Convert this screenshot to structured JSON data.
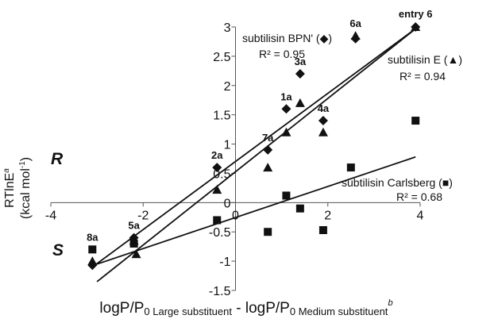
{
  "chart_data": {
    "type": "scatter",
    "xlim": [
      -4,
      4
    ],
    "ylim": [
      -1.5,
      3
    ],
    "x_ticks": [
      "-4",
      "-2",
      "0",
      "2",
      "4"
    ],
    "y_ticks": [
      "-1.5",
      "-1",
      "-0.5",
      "0",
      "0.5",
      "1",
      "1.5",
      "2",
      "2.5",
      "3"
    ],
    "xlabel": {
      "part1": "logP/P",
      "sub1": "0 Large substituent",
      "mid": " - logP/P",
      "sub2": "0 Medium substituent",
      "sup": "b"
    },
    "ylabel": {
      "line1_main": "RTlnE",
      "line1_sup": "a",
      "line2_main": "(kcal mol",
      "line2_sup": "-1",
      "line2_end": ")"
    },
    "region_labels": {
      "upper": "R",
      "lower": "S"
    },
    "series": [
      {
        "name": "subtilisin BPN'",
        "marker": "diamond",
        "color": "#111111",
        "annotation": "subtilisin BPN' (◆)",
        "r2": "R² = 0.95",
        "fit": {
          "x": [
            -3.1,
            3.95
          ],
          "y": [
            -1.1,
            3.0
          ]
        },
        "points": [
          {
            "x": -3.1,
            "y": -1.07
          },
          {
            "x": -2.2,
            "y": -0.6
          },
          {
            "x": -0.4,
            "y": 0.6
          },
          {
            "x": 0.7,
            "y": 0.9
          },
          {
            "x": 1.1,
            "y": 1.6
          },
          {
            "x": 1.4,
            "y": 2.2
          },
          {
            "x": 1.9,
            "y": 1.4
          },
          {
            "x": 2.6,
            "y": 2.8
          },
          {
            "x": 3.9,
            "y": 3.0
          }
        ]
      },
      {
        "name": "subtilisin E",
        "marker": "triangle",
        "color": "#111111",
        "annotation": "subtilisin E (▲)",
        "r2": "R² = 0.94",
        "fit": {
          "x": [
            -3.0,
            3.95
          ],
          "y": [
            -1.35,
            3.0
          ]
        },
        "points": [
          {
            "x": -3.1,
            "y": -1.0
          },
          {
            "x": -2.2,
            "y": -0.65
          },
          {
            "x": -2.15,
            "y": -0.88
          },
          {
            "x": -0.4,
            "y": 0.22
          },
          {
            "x": 0.7,
            "y": 0.6
          },
          {
            "x": 1.1,
            "y": 1.2
          },
          {
            "x": 1.4,
            "y": 1.7
          },
          {
            "x": 1.9,
            "y": 1.2
          },
          {
            "x": 2.6,
            "y": 2.85
          },
          {
            "x": 3.9,
            "y": 3.0
          }
        ]
      },
      {
        "name": "subtilisin Carlsberg",
        "marker": "square",
        "color": "#111111",
        "annotation": "subtilisin Carlsberg (■)",
        "r2": "R² = 0.68",
        "fit": {
          "x": [
            -3.0,
            3.9
          ],
          "y": [
            -1.05,
            0.78
          ]
        },
        "points": [
          {
            "x": -3.1,
            "y": -0.8
          },
          {
            "x": -2.2,
            "y": -0.7
          },
          {
            "x": -0.4,
            "y": -0.3
          },
          {
            "x": 0.7,
            "y": -0.5
          },
          {
            "x": 1.1,
            "y": 0.12
          },
          {
            "x": 1.4,
            "y": -0.1
          },
          {
            "x": 1.9,
            "y": -0.47
          },
          {
            "x": 2.5,
            "y": 0.6
          },
          {
            "x": 3.9,
            "y": 1.4
          }
        ]
      }
    ],
    "point_labels": [
      {
        "text": "8a",
        "x": -3.1,
        "y": -0.8
      },
      {
        "text": "5a",
        "x": -2.2,
        "y": -0.6
      },
      {
        "text": "2a",
        "x": -0.4,
        "y": 0.6
      },
      {
        "text": "7a",
        "x": 0.7,
        "y": 0.9
      },
      {
        "text": "1a",
        "x": 1.1,
        "y": 1.6
      },
      {
        "text": "3a",
        "x": 1.4,
        "y": 2.2
      },
      {
        "text": "4a",
        "x": 1.9,
        "y": 1.4
      },
      {
        "text": "6a",
        "x": 2.6,
        "y": 2.85
      },
      {
        "text": "entry 6",
        "x": 3.9,
        "y": 3.0
      }
    ]
  }
}
